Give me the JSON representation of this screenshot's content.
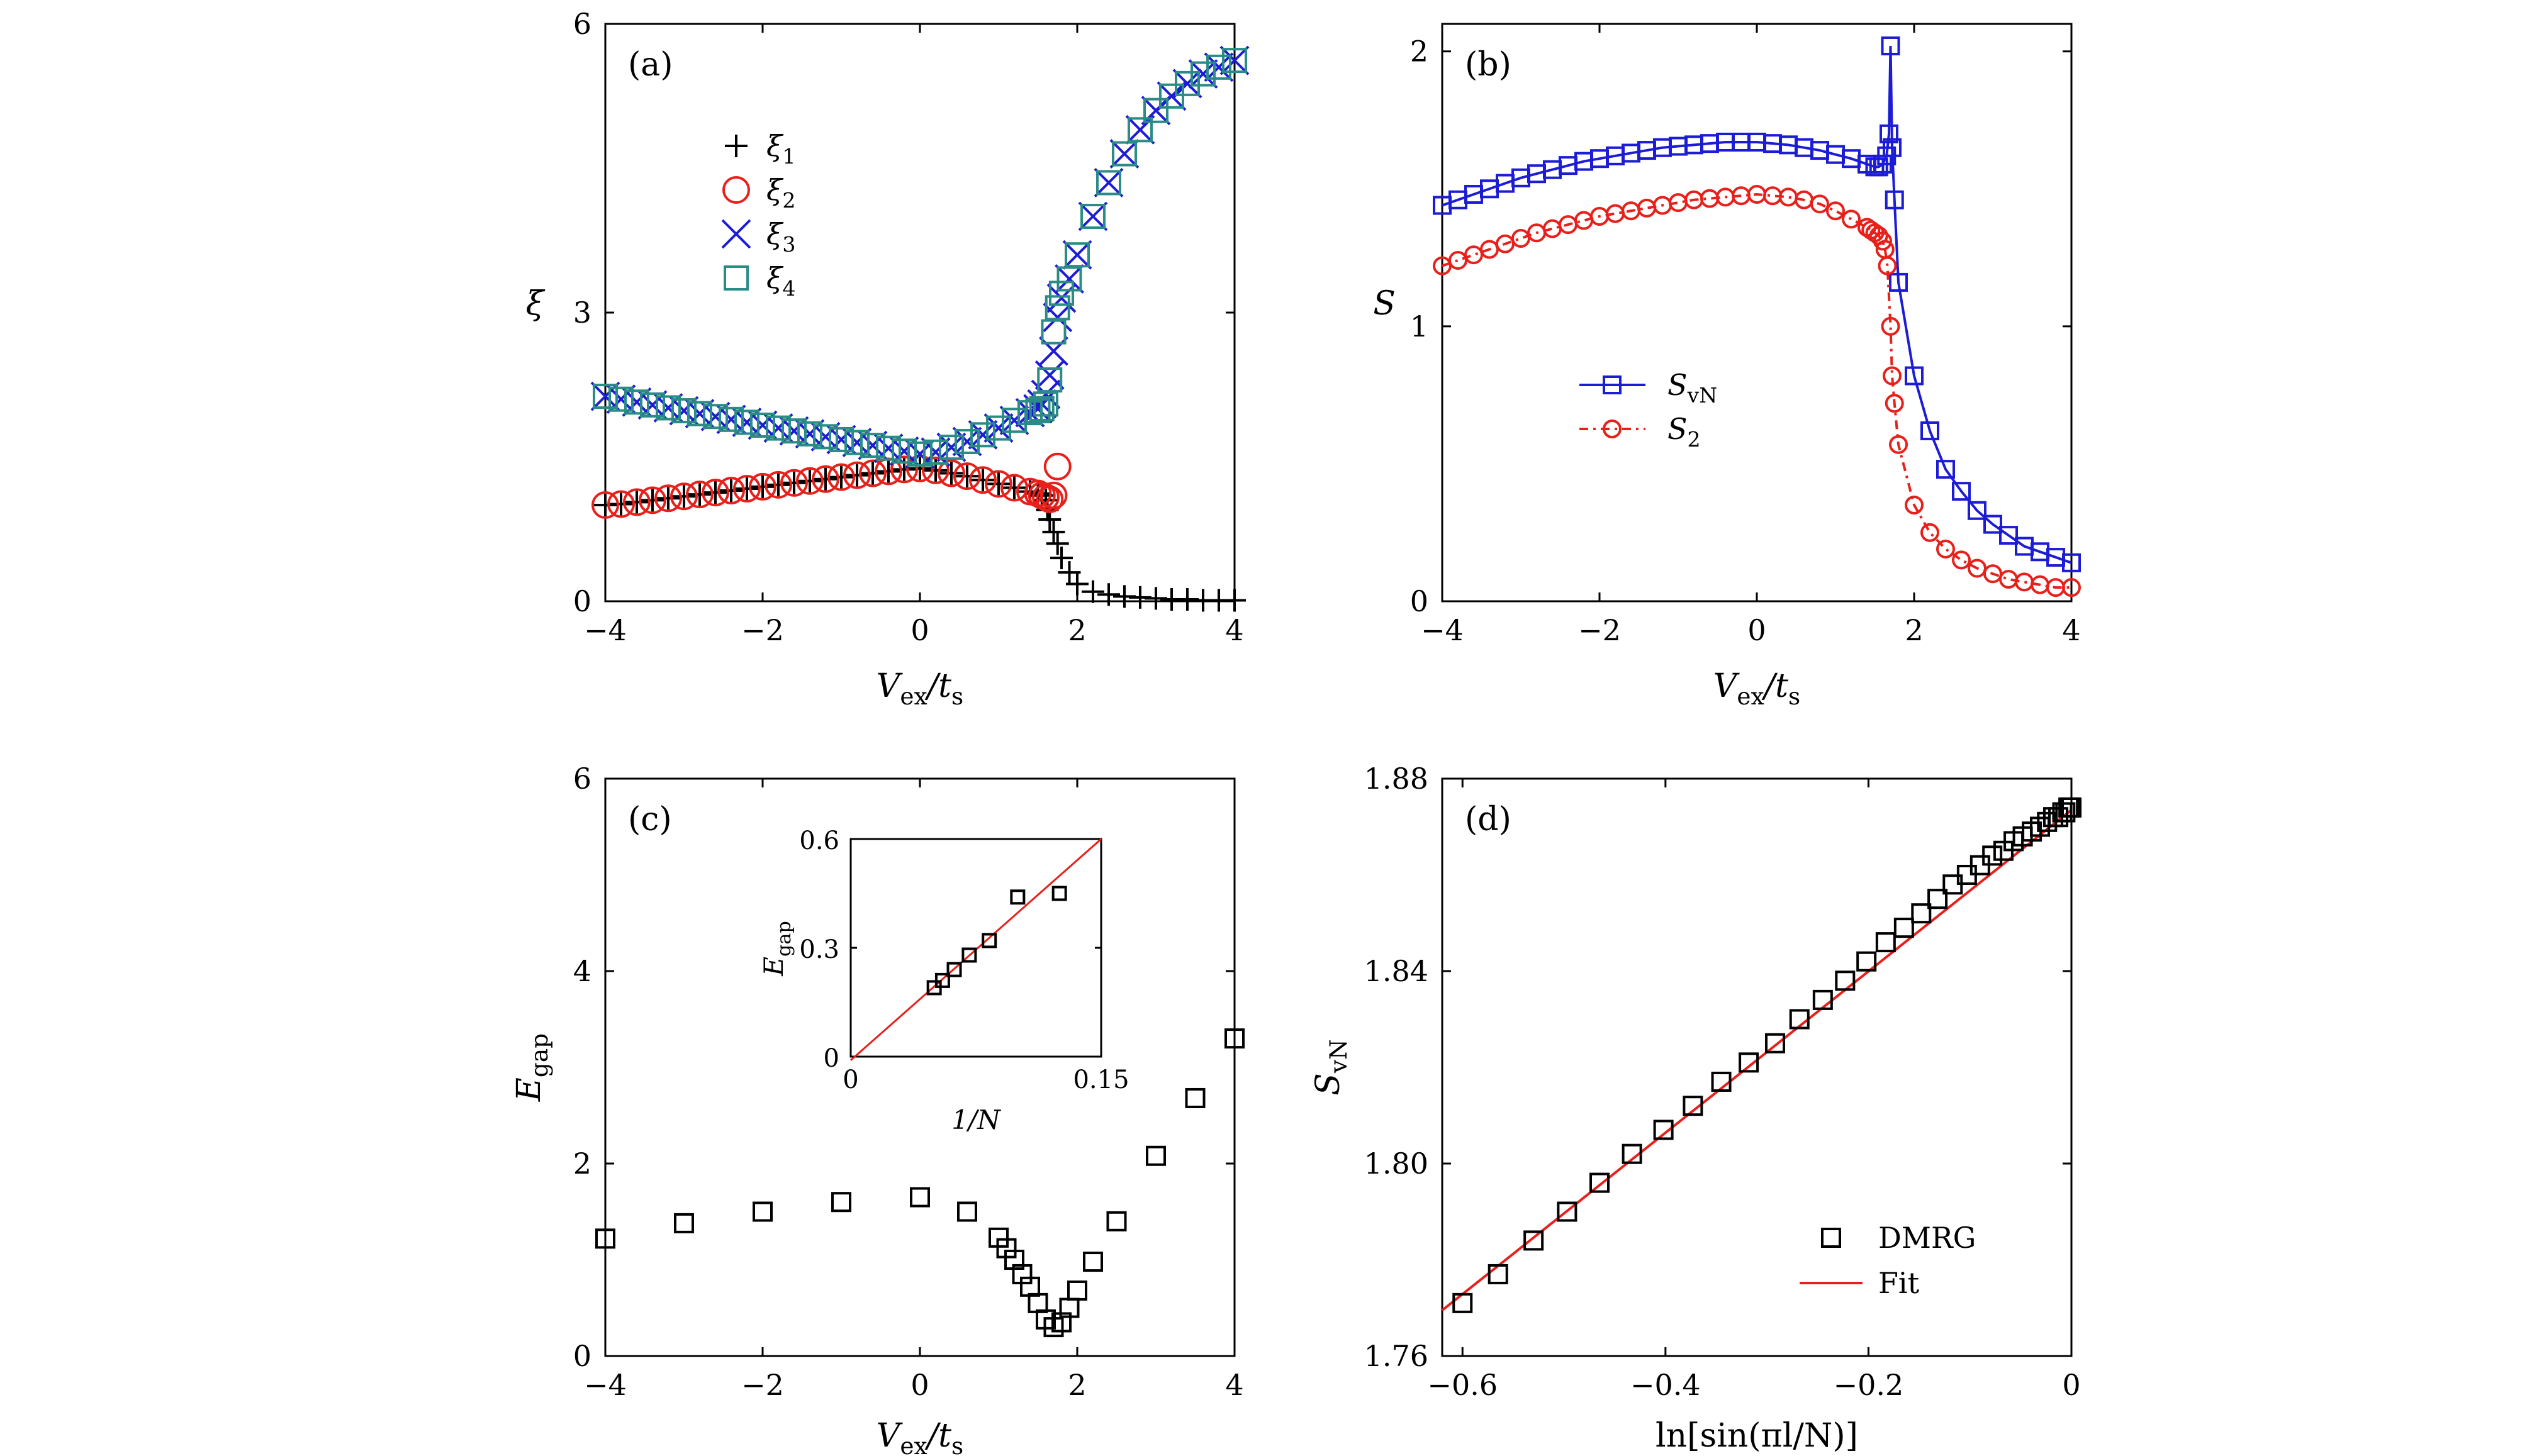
{
  "panels": {
    "a": {
      "label": "(a)",
      "xlabel_main": "V",
      "xlabel_sub": "ex",
      "xlabel_slash": "/t",
      "xlabel_sub2": "s",
      "ylabel": "ξ",
      "xticks": [
        "−4",
        "−2",
        "0",
        "2",
        "4"
      ],
      "yticks": [
        "0",
        "3",
        "6"
      ],
      "legend": [
        {
          "main": "ξ",
          "sub": "1"
        },
        {
          "main": "ξ",
          "sub": "2"
        },
        {
          "main": "ξ",
          "sub": "3"
        },
        {
          "main": "ξ",
          "sub": "4"
        }
      ]
    },
    "b": {
      "label": "(b)",
      "xlabel_main": "V",
      "xlabel_sub": "ex",
      "xlabel_slash": "/t",
      "xlabel_sub2": "s",
      "ylabel": "S",
      "xticks": [
        "−4",
        "−2",
        "0",
        "2",
        "4"
      ],
      "yticks": [
        "0",
        "1",
        "2"
      ],
      "legend": [
        {
          "main": "S",
          "sub": "vN"
        },
        {
          "main": "S",
          "sub": "2"
        }
      ]
    },
    "c": {
      "label": "(c)",
      "xlabel_main": "V",
      "xlabel_sub": "ex",
      "xlabel_slash": "/t",
      "xlabel_sub2": "s",
      "ylabel_main": "E",
      "ylabel_sub": "gap",
      "xticks": [
        "−4",
        "−2",
        "0",
        "2",
        "4"
      ],
      "yticks": [
        "0",
        "2",
        "4",
        "6"
      ],
      "inset": {
        "xlabel": "1/N",
        "ylabel_main": "E",
        "ylabel_sub": "gap",
        "xticks": [
          "0",
          "0.15"
        ],
        "yticks": [
          "0",
          "0.3",
          "0.6"
        ]
      }
    },
    "d": {
      "label": "(d)",
      "xlabel": "ln[sin(πl/N)]",
      "ylabel_main": "S",
      "ylabel_sub": "vN",
      "xticks": [
        "−0.6",
        "−0.4",
        "−0.2",
        "0"
      ],
      "yticks": [
        "1.76",
        "1.80",
        "1.84",
        "1.88"
      ],
      "legend": [
        "DMRG",
        "Fit"
      ]
    }
  },
  "colors": {
    "xi1": "#000000",
    "xi2": "#e8201b",
    "xi3": "#1c1cd6",
    "xi4": "#2a8c84",
    "svn": "#1c1cd6",
    "s2": "#e8201b",
    "dmrg": "#000000",
    "fit": "#e8201b"
  },
  "chart_data": [
    {
      "panel": "a",
      "type": "scatter",
      "xlim": [
        -4,
        4
      ],
      "ylim": [
        0,
        6
      ],
      "series": [
        {
          "name": "ξ1",
          "x": [
            -4.0,
            -3.8,
            -3.6,
            -3.4,
            -3.2,
            -3.0,
            -2.8,
            -2.6,
            -2.4,
            -2.2,
            -2.0,
            -1.8,
            -1.6,
            -1.4,
            -1.2,
            -1.0,
            -0.8,
            -0.6,
            -0.4,
            -0.2,
            0.0,
            0.2,
            0.4,
            0.6,
            0.8,
            1.0,
            1.2,
            1.4,
            1.5,
            1.55,
            1.6,
            1.62,
            1.65,
            1.7,
            1.75,
            1.8,
            1.9,
            2.0,
            2.2,
            2.4,
            2.6,
            2.8,
            3.0,
            3.2,
            3.4,
            3.6,
            3.8,
            4.0
          ],
          "y": [
            1.0,
            1.01,
            1.03,
            1.05,
            1.07,
            1.09,
            1.11,
            1.13,
            1.15,
            1.17,
            1.19,
            1.21,
            1.23,
            1.25,
            1.27,
            1.29,
            1.31,
            1.33,
            1.35,
            1.37,
            1.38,
            1.36,
            1.33,
            1.3,
            1.26,
            1.22,
            1.18,
            1.14,
            1.12,
            1.1,
            1.05,
            0.95,
            0.85,
            0.72,
            0.6,
            0.45,
            0.3,
            0.18,
            0.1,
            0.07,
            0.05,
            0.04,
            0.03,
            0.02,
            0.02,
            0.01,
            0.01,
            0.01
          ]
        },
        {
          "name": "ξ2",
          "x": [
            -4.0,
            -3.8,
            -3.6,
            -3.4,
            -3.2,
            -3.0,
            -2.8,
            -2.6,
            -2.4,
            -2.2,
            -2.0,
            -1.8,
            -1.6,
            -1.4,
            -1.2,
            -1.0,
            -0.8,
            -0.6,
            -0.4,
            -0.2,
            0.0,
            0.2,
            0.4,
            0.6,
            0.8,
            1.0,
            1.2,
            1.4,
            1.5,
            1.55,
            1.6,
            1.65,
            1.7,
            1.75
          ],
          "y": [
            1.0,
            1.01,
            1.03,
            1.05,
            1.07,
            1.09,
            1.11,
            1.13,
            1.15,
            1.17,
            1.19,
            1.21,
            1.23,
            1.25,
            1.27,
            1.29,
            1.31,
            1.33,
            1.35,
            1.37,
            1.38,
            1.36,
            1.33,
            1.3,
            1.26,
            1.22,
            1.18,
            1.14,
            1.12,
            1.1,
            1.08,
            1.06,
            1.1,
            1.4
          ]
        },
        {
          "name": "ξ3",
          "x": [
            -4.0,
            -3.8,
            -3.6,
            -3.4,
            -3.2,
            -3.0,
            -2.8,
            -2.6,
            -2.4,
            -2.2,
            -2.0,
            -1.8,
            -1.6,
            -1.4,
            -1.2,
            -1.0,
            -0.8,
            -0.6,
            -0.4,
            -0.2,
            0.0,
            0.2,
            0.4,
            0.6,
            0.8,
            1.0,
            1.2,
            1.4,
            1.5,
            1.55,
            1.6,
            1.65,
            1.7,
            1.75,
            1.8,
            1.9,
            2.0,
            2.2,
            2.4,
            2.6,
            2.8,
            3.0,
            3.2,
            3.4,
            3.6,
            3.8,
            4.0
          ],
          "y": [
            2.13,
            2.1,
            2.07,
            2.04,
            2.01,
            1.98,
            1.95,
            1.92,
            1.89,
            1.86,
            1.83,
            1.8,
            1.77,
            1.74,
            1.71,
            1.68,
            1.65,
            1.62,
            1.59,
            1.56,
            1.53,
            1.55,
            1.6,
            1.66,
            1.73,
            1.8,
            1.88,
            1.96,
            2.0,
            2.05,
            2.15,
            2.35,
            2.6,
            2.95,
            3.15,
            3.35,
            3.6,
            4.0,
            4.35,
            4.65,
            4.9,
            5.1,
            5.25,
            5.38,
            5.48,
            5.55,
            5.62
          ]
        },
        {
          "name": "ξ4",
          "x": [
            -4.0,
            -3.8,
            -3.6,
            -3.4,
            -3.2,
            -3.0,
            -2.8,
            -2.6,
            -2.4,
            -2.2,
            -2.0,
            -1.8,
            -1.6,
            -1.4,
            -1.2,
            -1.0,
            -0.8,
            -0.6,
            -0.4,
            -0.2,
            0.0,
            0.2,
            0.4,
            0.6,
            0.8,
            1.0,
            1.2,
            1.4,
            1.5,
            1.55,
            1.6,
            1.65,
            1.7,
            1.75,
            1.8,
            1.9,
            2.0,
            2.2,
            2.4,
            2.6,
            2.8,
            3.0,
            3.2,
            3.4,
            3.6,
            3.8,
            4.0
          ],
          "y": [
            2.13,
            2.1,
            2.07,
            2.04,
            2.01,
            1.98,
            1.95,
            1.92,
            1.89,
            1.86,
            1.83,
            1.8,
            1.77,
            1.74,
            1.71,
            1.68,
            1.65,
            1.62,
            1.59,
            1.56,
            1.53,
            1.55,
            1.6,
            1.66,
            1.73,
            1.8,
            1.88,
            1.96,
            1.98,
            2.0,
            2.05,
            2.3,
            2.8,
            3.05,
            3.2,
            3.35,
            3.6,
            4.0,
            4.35,
            4.65,
            4.9,
            5.1,
            5.25,
            5.38,
            5.48,
            5.55,
            5.62
          ]
        }
      ]
    },
    {
      "panel": "b",
      "type": "line",
      "xlim": [
        -4,
        4
      ],
      "ylim": [
        0,
        2.1
      ],
      "series": [
        {
          "name": "SvN",
          "x": [
            -4.0,
            -3.8,
            -3.6,
            -3.4,
            -3.2,
            -3.0,
            -2.8,
            -2.6,
            -2.4,
            -2.2,
            -2.0,
            -1.8,
            -1.6,
            -1.4,
            -1.2,
            -1.0,
            -0.8,
            -0.6,
            -0.4,
            -0.2,
            0.0,
            0.2,
            0.4,
            0.6,
            0.8,
            1.0,
            1.2,
            1.4,
            1.5,
            1.55,
            1.6,
            1.65,
            1.68,
            1.7,
            1.72,
            1.75,
            1.8,
            2.0,
            2.2,
            2.4,
            2.6,
            2.8,
            3.0,
            3.2,
            3.4,
            3.6,
            3.8,
            4.0
          ],
          "y": [
            1.44,
            1.46,
            1.48,
            1.5,
            1.52,
            1.54,
            1.555,
            1.57,
            1.585,
            1.6,
            1.61,
            1.62,
            1.63,
            1.64,
            1.65,
            1.655,
            1.66,
            1.665,
            1.67,
            1.67,
            1.67,
            1.665,
            1.66,
            1.65,
            1.64,
            1.625,
            1.61,
            1.59,
            1.58,
            1.58,
            1.59,
            1.62,
            1.7,
            2.02,
            1.65,
            1.46,
            1.16,
            0.82,
            0.62,
            0.48,
            0.4,
            0.33,
            0.28,
            0.24,
            0.2,
            0.18,
            0.16,
            0.14
          ]
        },
        {
          "name": "S2",
          "x": [
            -4.0,
            -3.8,
            -3.6,
            -3.4,
            -3.2,
            -3.0,
            -2.8,
            -2.6,
            -2.4,
            -2.2,
            -2.0,
            -1.8,
            -1.6,
            -1.4,
            -1.2,
            -1.0,
            -0.8,
            -0.6,
            -0.4,
            -0.2,
            0.0,
            0.2,
            0.4,
            0.6,
            0.8,
            1.0,
            1.2,
            1.4,
            1.45,
            1.5,
            1.55,
            1.6,
            1.63,
            1.66,
            1.7,
            1.72,
            1.75,
            1.8,
            2.0,
            2.2,
            2.4,
            2.6,
            2.8,
            3.0,
            3.2,
            3.4,
            3.6,
            3.8,
            4.0
          ],
          "y": [
            1.22,
            1.24,
            1.26,
            1.28,
            1.3,
            1.32,
            1.34,
            1.355,
            1.37,
            1.385,
            1.4,
            1.41,
            1.42,
            1.43,
            1.44,
            1.45,
            1.46,
            1.465,
            1.47,
            1.475,
            1.48,
            1.475,
            1.47,
            1.46,
            1.445,
            1.42,
            1.39,
            1.36,
            1.35,
            1.34,
            1.33,
            1.31,
            1.28,
            1.22,
            1.0,
            0.82,
            0.72,
            0.57,
            0.35,
            0.25,
            0.19,
            0.15,
            0.12,
            0.1,
            0.08,
            0.07,
            0.06,
            0.05,
            0.05
          ]
        }
      ]
    },
    {
      "panel": "c",
      "type": "scatter",
      "xlim": [
        -4,
        4
      ],
      "ylim": [
        0,
        6
      ],
      "series": [
        {
          "name": "Egap",
          "x": [
            -4.0,
            -3.0,
            -2.0,
            -1.0,
            0.0,
            0.6,
            1.0,
            1.1,
            1.2,
            1.3,
            1.4,
            1.5,
            1.6,
            1.7,
            1.8,
            1.9,
            2.0,
            2.2,
            2.5,
            3.0,
            3.5,
            4.0
          ],
          "y": [
            1.22,
            1.38,
            1.5,
            1.6,
            1.65,
            1.5,
            1.23,
            1.12,
            1.0,
            0.85,
            0.72,
            0.55,
            0.38,
            0.3,
            0.35,
            0.5,
            0.68,
            0.98,
            1.4,
            2.08,
            2.68,
            3.3
          ]
        }
      ],
      "inset": {
        "type": "scatter",
        "xlim": [
          0,
          0.15
        ],
        "ylim": [
          0,
          0.6
        ],
        "series": [
          {
            "name": "Egap",
            "x": [
              0.05,
              0.055,
              0.062,
              0.071,
              0.083,
              0.1,
              0.125
            ],
            "y": [
              0.19,
              0.21,
              0.24,
              0.28,
              0.32,
              0.44,
              0.45
            ]
          },
          {
            "name": "fit",
            "x": [
              0.0,
              0.15
            ],
            "y": [
              -0.01,
              0.6
            ]
          }
        ]
      }
    },
    {
      "panel": "d",
      "type": "scatter",
      "xlim": [
        -0.62,
        0
      ],
      "ylim": [
        1.76,
        1.88
      ],
      "series": [
        {
          "name": "DMRG",
          "x": [
            -0.6,
            -0.565,
            -0.53,
            -0.497,
            -0.465,
            -0.433,
            -0.402,
            -0.373,
            -0.345,
            -0.318,
            -0.292,
            -0.268,
            -0.245,
            -0.223,
            -0.202,
            -0.183,
            -0.165,
            -0.148,
            -0.132,
            -0.117,
            -0.103,
            -0.09,
            -0.078,
            -0.067,
            -0.057,
            -0.048,
            -0.039,
            -0.031,
            -0.024,
            -0.018,
            -0.013,
            -0.009,
            -0.006,
            -0.003,
            -0.001,
            0.0
          ],
          "y": [
            1.771,
            1.777,
            1.784,
            1.79,
            1.796,
            1.802,
            1.807,
            1.812,
            1.817,
            1.821,
            1.825,
            1.83,
            1.834,
            1.838,
            1.842,
            1.846,
            1.849,
            1.852,
            1.855,
            1.858,
            1.86,
            1.862,
            1.864,
            1.865,
            1.867,
            1.868,
            1.869,
            1.87,
            1.871,
            1.872,
            1.872,
            1.873,
            1.873,
            1.874,
            1.874,
            1.874
          ]
        },
        {
          "name": "Fit",
          "x": [
            -0.62,
            0.0
          ],
          "y": [
            1.7695,
            1.8735
          ]
        }
      ]
    }
  ]
}
